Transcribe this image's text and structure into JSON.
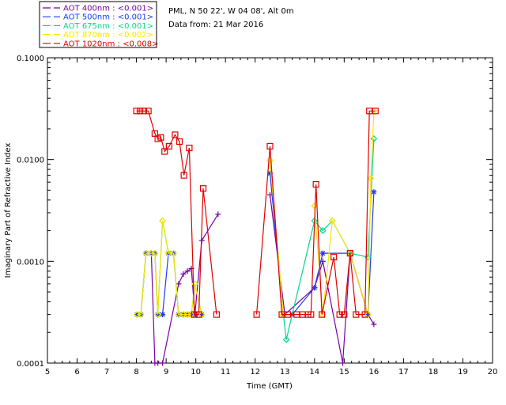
{
  "chart_data": {
    "type": "line",
    "title": "",
    "info_lines": [
      "PML, N 50 22', W 04 08', Alt 0m",
      "Data from: 21 Mar 2016"
    ],
    "xlabel": "Time (GMT)",
    "ylabel": "Imaginary Part of Refractive Index",
    "xlim": [
      5,
      20
    ],
    "ylim": [
      0.0001,
      0.1
    ],
    "yscale": "log",
    "x_ticks": [
      "5",
      "6",
      "7",
      "8",
      "9",
      "10",
      "11",
      "12",
      "13",
      "14",
      "15",
      "16",
      "17",
      "18",
      "19",
      "20"
    ],
    "y_ticks": [
      "0.0001",
      "0.0010",
      "0.0100",
      "0.1000"
    ],
    "series": [
      {
        "name": "AOT  400nm : <0.001>",
        "color": "#7a00a8",
        "marker": "plus",
        "x": [
          8.5,
          8.62,
          8.72,
          8.88,
          9.42,
          9.58,
          9.72,
          9.85,
          9.97,
          10.2,
          10.75,
          12.5,
          13.0,
          14.0,
          14.28,
          14.95,
          15.2,
          15.8,
          16.0
        ],
        "y": [
          0.0012,
          0.0001,
          0.0001,
          0.0001,
          0.0006,
          0.00075,
          0.0008,
          0.00085,
          0.0003,
          0.0016,
          0.0029,
          0.0045,
          0.0003,
          0.00055,
          0.001,
          0.0001,
          0.0012,
          0.0003,
          0.00024
        ]
      },
      {
        "name": "AOT  500nm : <0.001>",
        "color": "#1a3cff",
        "marker": "asterisk",
        "x": [
          8.02,
          8.15,
          8.32,
          8.5,
          8.62,
          8.72,
          8.88,
          9.08,
          9.25,
          9.42,
          9.58,
          9.72,
          9.85,
          9.97,
          10.2,
          12.5,
          12.95,
          13.25,
          14.0,
          14.28,
          15.2,
          15.8,
          16.0
        ],
        "y": [
          0.0003,
          0.0003,
          0.0012,
          0.0012,
          0.0012,
          0.0003,
          0.0003,
          0.0012,
          0.0012,
          0.0003,
          0.0003,
          0.0003,
          0.0003,
          0.0003,
          0.0003,
          0.0073,
          0.0003,
          0.0003,
          0.00055,
          0.0012,
          0.0012,
          0.0003,
          0.0048
        ]
      },
      {
        "name": "AOT  675nm : <0.001>",
        "color": "#00d88a",
        "marker": "diamond",
        "x": [
          8.02,
          8.15,
          8.32,
          8.5,
          8.62,
          8.72,
          8.88,
          9.08,
          9.25,
          9.42,
          9.58,
          9.72,
          9.85,
          9.97,
          10.2,
          12.5,
          12.95,
          13.05,
          14.0,
          14.28,
          14.6,
          15.2,
          15.8,
          16.0
        ],
        "y": [
          0.0003,
          0.0003,
          0.0012,
          0.0012,
          0.0012,
          0.0003,
          0.0025,
          0.0012,
          0.0012,
          0.0003,
          0.0003,
          0.0003,
          0.0003,
          0.0006,
          0.0003,
          0.0098,
          0.0003,
          0.00017,
          0.0025,
          0.002,
          0.0025,
          0.0012,
          0.0011,
          0.016
        ]
      },
      {
        "name": "AOT  870nm : <0.002>",
        "color": "#ffe400",
        "marker": "diamond",
        "x": [
          8.02,
          8.15,
          8.32,
          8.5,
          8.62,
          8.72,
          8.88,
          9.08,
          9.25,
          9.42,
          9.58,
          9.72,
          9.85,
          9.97,
          10.2,
          12.5,
          12.95,
          14.0,
          14.28,
          14.6,
          15.2,
          15.8,
          15.9,
          16.0
        ],
        "y": [
          0.0003,
          0.0003,
          0.0012,
          0.0012,
          0.0012,
          0.0003,
          0.0025,
          0.0012,
          0.0012,
          0.0003,
          0.0003,
          0.0003,
          0.0003,
          0.0006,
          0.0003,
          0.0098,
          0.0003,
          0.0035,
          0.0003,
          0.0025,
          0.0012,
          0.0003,
          0.0065,
          0.03
        ]
      },
      {
        "name": "AOT 1020nm : <0.008>",
        "color": "#e00000",
        "marker": "square",
        "x": [
          8.0,
          8.12,
          8.25,
          8.4,
          8.62,
          8.72,
          8.82,
          8.95,
          9.1,
          9.3,
          9.45,
          9.6,
          9.78,
          9.95,
          10.1,
          10.25,
          10.7,
          12.05,
          12.5,
          12.9,
          13.1,
          13.4,
          13.6,
          13.78,
          13.88,
          14.05,
          14.25,
          14.65,
          14.85,
          15.0,
          15.2,
          15.4,
          15.7,
          15.85,
          16.05
        ],
        "y": [
          0.03,
          0.03,
          0.03,
          0.03,
          0.018,
          0.016,
          0.0165,
          0.012,
          0.0135,
          0.0175,
          0.015,
          0.007,
          0.013,
          0.0003,
          0.0003,
          0.0052,
          0.0003,
          0.0003,
          0.0135,
          0.0003,
          0.0003,
          0.0003,
          0.0003,
          0.0003,
          0.0003,
          0.0057,
          0.0003,
          0.0011,
          0.0003,
          0.0003,
          0.0012,
          0.0003,
          0.0003,
          0.03,
          0.03
        ]
      }
    ]
  }
}
